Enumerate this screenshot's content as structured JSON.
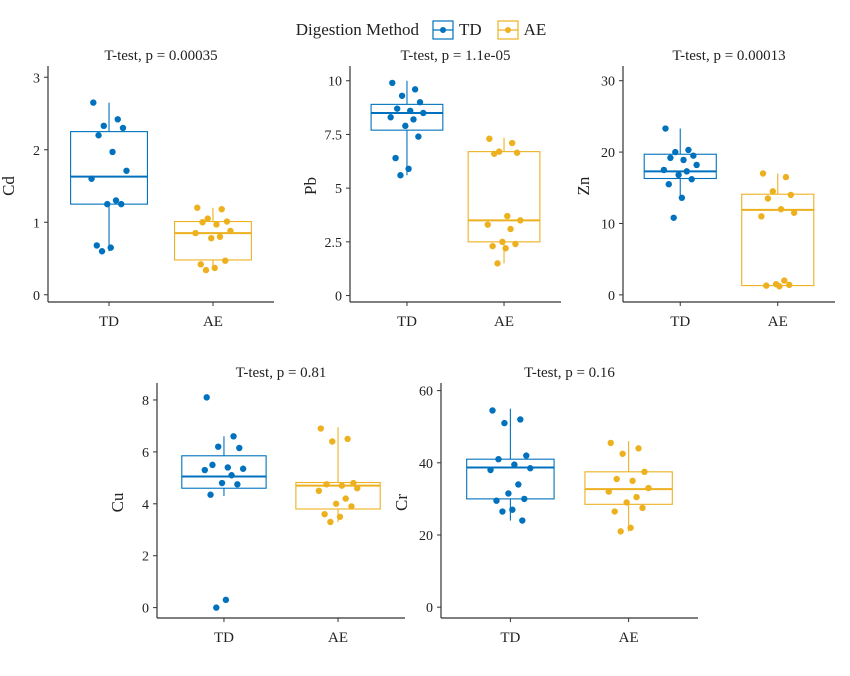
{
  "legend": {
    "title": "Digestion Method",
    "entries": [
      {
        "label": "TD",
        "color": "#0072BD"
      },
      {
        "label": "AE",
        "color": "#EDB120"
      }
    ]
  },
  "colors": {
    "TD": "#0072BD",
    "AE": "#EDB120",
    "axis": "#333333"
  },
  "chart_data": [
    {
      "type": "box",
      "title": "T-test, p = 0.00035",
      "ylabel": "Cd",
      "categories": [
        "TD",
        "AE"
      ],
      "ylim": [
        -0.1,
        3.1
      ],
      "yticks": [
        0,
        1,
        2,
        3
      ],
      "ytick_labels": [
        "0",
        "1",
        "2",
        "3"
      ],
      "series": [
        {
          "name": "TD",
          "box": {
            "q1": 1.25,
            "median": 1.63,
            "q3": 2.25,
            "whisker_low": 0.6,
            "whisker_high": 2.65
          },
          "points": [
            2.65,
            2.42,
            2.33,
            2.3,
            2.2,
            1.97,
            1.71,
            1.6,
            1.3,
            1.25,
            1.25,
            0.68,
            0.65,
            0.6
          ]
        },
        {
          "name": "AE",
          "box": {
            "q1": 0.48,
            "median": 0.85,
            "q3": 1.01,
            "whisker_low": 0.34,
            "whisker_high": 1.2
          },
          "points": [
            1.2,
            1.18,
            1.05,
            1.01,
            1.0,
            0.97,
            0.88,
            0.85,
            0.8,
            0.78,
            0.47,
            0.42,
            0.37,
            0.34
          ]
        }
      ]
    },
    {
      "type": "box",
      "title": "T-test, p = 1.1e-05",
      "ylabel": "Pb",
      "categories": [
        "TD",
        "AE"
      ],
      "ylim": [
        -0.3,
        10.5
      ],
      "yticks": [
        0,
        2.5,
        5,
        7.5,
        10
      ],
      "ytick_labels": [
        "0",
        "2.5",
        "5",
        "7.5",
        "10"
      ],
      "series": [
        {
          "name": "TD",
          "box": {
            "q1": 7.7,
            "median": 8.5,
            "q3": 8.9,
            "whisker_low": 5.6,
            "whisker_high": 10.0
          },
          "points": [
            9.9,
            9.6,
            9.3,
            9.0,
            8.7,
            8.6,
            8.5,
            8.3,
            8.2,
            7.9,
            7.4,
            6.4,
            5.9,
            5.6
          ]
        },
        {
          "name": "AE",
          "box": {
            "q1": 2.5,
            "median": 3.5,
            "q3": 6.7,
            "whisker_low": 1.5,
            "whisker_high": 7.35
          },
          "points": [
            7.3,
            7.1,
            6.7,
            6.65,
            6.6,
            3.7,
            3.5,
            3.3,
            3.1,
            2.5,
            2.4,
            2.3,
            2.2,
            1.5
          ]
        }
      ]
    },
    {
      "type": "box",
      "title": "T-test, p = 0.00013",
      "ylabel": "Zn",
      "categories": [
        "TD",
        "AE"
      ],
      "ylim": [
        -1,
        31.5
      ],
      "yticks": [
        0,
        10,
        20,
        30
      ],
      "ytick_labels": [
        "0",
        "10",
        "20",
        "30"
      ],
      "series": [
        {
          "name": "TD",
          "box": {
            "q1": 16.3,
            "median": 17.3,
            "q3": 19.7,
            "whisker_low": 13.2,
            "whisker_high": 23.3
          },
          "points": [
            23.3,
            20.3,
            20.0,
            19.5,
            19.2,
            18.9,
            18.2,
            17.5,
            17.3,
            16.8,
            16.2,
            15.5,
            13.6,
            10.8
          ]
        },
        {
          "name": "AE",
          "box": {
            "q1": 1.3,
            "median": 11.9,
            "q3": 14.1,
            "whisker_low": 1.2,
            "whisker_high": 17.0
          },
          "points": [
            17.0,
            16.5,
            14.5,
            14.0,
            13.5,
            12.0,
            11.5,
            11.0,
            2.0,
            1.5,
            1.4,
            1.3,
            1.2
          ]
        }
      ]
    },
    {
      "type": "box",
      "title": "T-test, p = 0.81",
      "ylabel": "Cu",
      "categories": [
        "TD",
        "AE"
      ],
      "ylim": [
        -0.4,
        8.5
      ],
      "yticks": [
        0,
        2,
        4,
        6,
        8
      ],
      "ytick_labels": [
        "0",
        "2",
        "4",
        "6",
        "8"
      ],
      "series": [
        {
          "name": "TD",
          "box": {
            "q1": 4.6,
            "median": 5.05,
            "q3": 5.85,
            "whisker_low": 4.3,
            "whisker_high": 6.6
          },
          "points": [
            8.1,
            6.6,
            6.2,
            6.15,
            5.5,
            5.4,
            5.35,
            5.3,
            5.1,
            4.8,
            4.75,
            4.35,
            0.3,
            0.0
          ]
        },
        {
          "name": "AE",
          "box": {
            "q1": 3.8,
            "median": 4.7,
            "q3": 4.82,
            "whisker_low": 3.3,
            "whisker_high": 6.95
          },
          "points": [
            6.9,
            6.5,
            6.4,
            4.8,
            4.75,
            4.7,
            4.6,
            4.5,
            4.2,
            4.0,
            3.9,
            3.6,
            3.5,
            3.3
          ]
        }
      ]
    },
    {
      "type": "box",
      "title": "T-test, p = 0.16",
      "ylabel": "Cr",
      "categories": [
        "TD",
        "AE"
      ],
      "ylim": [
        -3,
        61
      ],
      "yticks": [
        0,
        20,
        40,
        60
      ],
      "ytick_labels": [
        "0",
        "20",
        "40",
        "60"
      ],
      "series": [
        {
          "name": "TD",
          "box": {
            "q1": 30.0,
            "median": 38.7,
            "q3": 41.0,
            "whisker_low": 24.0,
            "whisker_high": 55.0
          },
          "points": [
            54.5,
            52.0,
            51.0,
            42.0,
            41.0,
            39.5,
            38.5,
            38.0,
            34.0,
            31.5,
            30.0,
            29.5,
            27.0,
            26.5,
            24.0
          ]
        },
        {
          "name": "AE",
          "box": {
            "q1": 28.5,
            "median": 32.7,
            "q3": 37.5,
            "whisker_low": 21.0,
            "whisker_high": 46.0
          },
          "points": [
            45.5,
            44.0,
            42.5,
            37.5,
            35.5,
            35.0,
            33.0,
            32.0,
            30.5,
            29.0,
            27.5,
            26.5,
            22.0,
            21.0
          ]
        }
      ]
    }
  ]
}
